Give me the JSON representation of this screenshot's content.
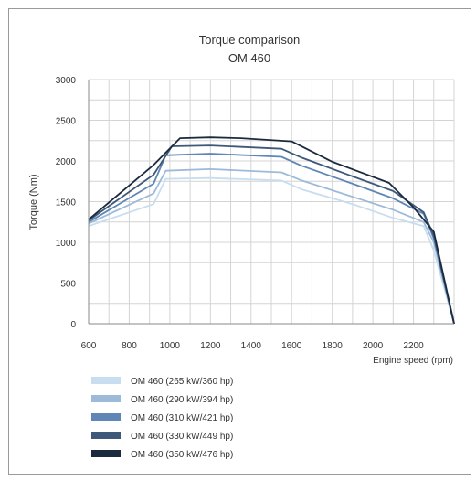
{
  "chart_data": {
    "type": "line",
    "title": "Torque comparison",
    "subtitle": "OM 460",
    "xlabel": "Engine speed (rpm)",
    "ylabel": "Torque (Nm)",
    "xlim": [
      600,
      2400
    ],
    "ylim": [
      0,
      3000
    ],
    "x_ticks": [
      600,
      800,
      1000,
      1200,
      1400,
      1600,
      1800,
      2000,
      2200
    ],
    "y_ticks": [
      0,
      500,
      1000,
      1500,
      2000,
      2500,
      3000
    ],
    "x_tick_labels": [
      "600",
      "800",
      "1000",
      "1200",
      "1400",
      "1600",
      "1800",
      "2000",
      "2200"
    ],
    "y_tick_labels": [
      "0",
      "500",
      "1000",
      "1500",
      "2000",
      "2500",
      "3000"
    ],
    "grid": true,
    "legend_position": "bottom-left",
    "series": [
      {
        "name": "OM 460 (265 kW/360 hp)",
        "color": "#c8ddef",
        "points": [
          [
            600,
            1200
          ],
          [
            920,
            1470
          ],
          [
            980,
            1780
          ],
          [
            1200,
            1790
          ],
          [
            1550,
            1760
          ],
          [
            1650,
            1650
          ],
          [
            1900,
            1470
          ],
          [
            2100,
            1300
          ],
          [
            2250,
            1200
          ],
          [
            2300,
            900
          ],
          [
            2400,
            0
          ]
        ]
      },
      {
        "name": "OM 460 (290 kW/394 hp)",
        "color": "#9dbbd9",
        "points": [
          [
            600,
            1230
          ],
          [
            920,
            1600
          ],
          [
            980,
            1880
          ],
          [
            1200,
            1900
          ],
          [
            1550,
            1860
          ],
          [
            1650,
            1760
          ],
          [
            1900,
            1560
          ],
          [
            2100,
            1400
          ],
          [
            2250,
            1250
          ],
          [
            2300,
            1000
          ],
          [
            2400,
            0
          ]
        ]
      },
      {
        "name": "OM 460 (310 kW/421 hp)",
        "color": "#5f86b4",
        "points": [
          [
            600,
            1250
          ],
          [
            920,
            1720
          ],
          [
            980,
            2070
          ],
          [
            1200,
            2090
          ],
          [
            1550,
            2050
          ],
          [
            1650,
            1940
          ],
          [
            1900,
            1720
          ],
          [
            2100,
            1540
          ],
          [
            2250,
            1350
          ],
          [
            2300,
            1050
          ],
          [
            2400,
            0
          ]
        ]
      },
      {
        "name": "OM 460 (330 kW/449 hp)",
        "color": "#3d5878",
        "points": [
          [
            600,
            1270
          ],
          [
            920,
            1830
          ],
          [
            1010,
            2180
          ],
          [
            1200,
            2190
          ],
          [
            1550,
            2150
          ],
          [
            1650,
            2040
          ],
          [
            1900,
            1810
          ],
          [
            2100,
            1630
          ],
          [
            2250,
            1370
          ],
          [
            2300,
            1080
          ],
          [
            2400,
            0
          ]
        ]
      },
      {
        "name": "OM 460 (350 kW/476 hp)",
        "color": "#1c2a3e",
        "points": [
          [
            600,
            1280
          ],
          [
            920,
            1950
          ],
          [
            1050,
            2280
          ],
          [
            1200,
            2290
          ],
          [
            1350,
            2280
          ],
          [
            1600,
            2240
          ],
          [
            1800,
            1990
          ],
          [
            2080,
            1730
          ],
          [
            2200,
            1430
          ],
          [
            2300,
            1130
          ],
          [
            2400,
            0
          ]
        ]
      }
    ]
  }
}
